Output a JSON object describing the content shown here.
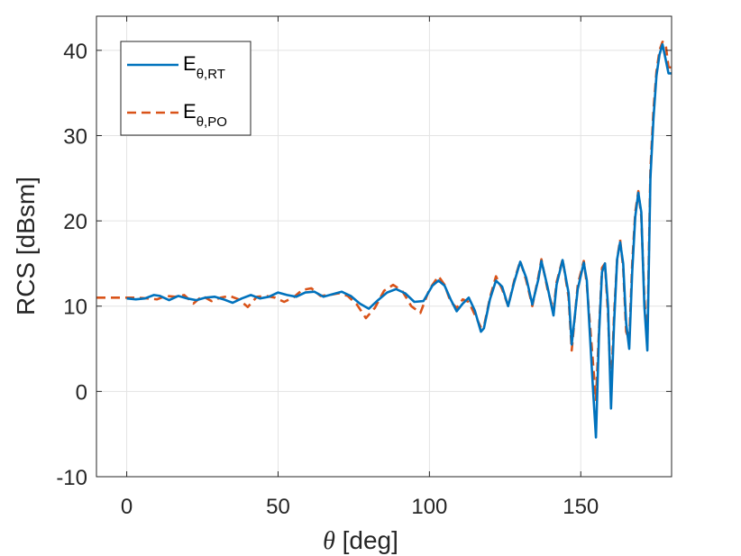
{
  "chart_data": {
    "type": "line",
    "xlabel_symbol": "θ",
    "xlabel_unit": " [deg]",
    "ylabel": "RCS [dBsm]",
    "xlim": [
      -10,
      180
    ],
    "ylim": [
      -10,
      44
    ],
    "xticks": [
      0,
      50,
      100,
      150
    ],
    "yticks": [
      -10,
      0,
      10,
      20,
      30,
      40
    ],
    "grid": true,
    "legend_position": "top-left",
    "series": [
      {
        "name": "E_θ,RT",
        "legend_main": "E",
        "legend_sub": "θ,RT",
        "color": "#0072BD",
        "style": "solid",
        "x": [
          0,
          3,
          6,
          9,
          11,
          14,
          17,
          20,
          23,
          26,
          29,
          32,
          35,
          38,
          41,
          44,
          47,
          50,
          53,
          56,
          59,
          62,
          65,
          68,
          71,
          74,
          77,
          80,
          83,
          86,
          89,
          92,
          95,
          98,
          101,
          103,
          105,
          107,
          109,
          111,
          113,
          115,
          117,
          118,
          120,
          122,
          124,
          126,
          128,
          130,
          132,
          134,
          136,
          137,
          139,
          141,
          142,
          144,
          146,
          147,
          149,
          151,
          152,
          154,
          155,
          156,
          157,
          158,
          159,
          160,
          161,
          162,
          163,
          164,
          165,
          166,
          167,
          168,
          169,
          170,
          171,
          172,
          173,
          174,
          175,
          176,
          177,
          178,
          179,
          180
        ],
        "y": [
          10.9,
          10.8,
          10.9,
          11.3,
          11.2,
          10.7,
          11.2,
          10.9,
          10.7,
          11.0,
          11.1,
          10.8,
          10.4,
          10.9,
          11.3,
          10.9,
          11.1,
          11.6,
          11.3,
          11.1,
          11.6,
          11.7,
          11.1,
          11.4,
          11.7,
          11.2,
          10.3,
          9.7,
          10.7,
          11.6,
          12.0,
          11.5,
          10.5,
          10.6,
          12.4,
          13.0,
          12.4,
          10.8,
          9.4,
          10.3,
          11.0,
          9.5,
          7.0,
          7.4,
          10.8,
          13.0,
          12.3,
          10.0,
          12.8,
          15.2,
          13.3,
          10.2,
          13.2,
          15.3,
          12.3,
          8.9,
          12.5,
          15.4,
          11.5,
          5.5,
          12.0,
          15.1,
          13.0,
          0.5,
          -5.4,
          6.5,
          14.0,
          15.0,
          10.0,
          -2.0,
          8.0,
          15.5,
          17.5,
          15.0,
          8.0,
          5.0,
          14.0,
          20.5,
          23.3,
          21.0,
          10.0,
          4.8,
          25.0,
          32.0,
          37.0,
          39.5,
          40.7,
          39.0,
          37.3,
          37.3
        ]
      },
      {
        "name": "E_θ,PO",
        "legend_main": "E",
        "legend_sub": "θ,PO",
        "color": "#D95319",
        "style": "dashed",
        "x": [
          -10,
          -5,
          0,
          3,
          7,
          10,
          13,
          16,
          19,
          22,
          25,
          28,
          31,
          34,
          37,
          40,
          43,
          46,
          49,
          52,
          55,
          58,
          61,
          64,
          67,
          70,
          73,
          76,
          79,
          82,
          85,
          88,
          91,
          94,
          97,
          100,
          103,
          105,
          107,
          109,
          111,
          113,
          115,
          117,
          118,
          120,
          122,
          124,
          126,
          128,
          130,
          132,
          134,
          136,
          137,
          139,
          141,
          142,
          144,
          146,
          147,
          149,
          151,
          152,
          154,
          155,
          156,
          157,
          158,
          159,
          160,
          161,
          162,
          163,
          164,
          165,
          166,
          167,
          168,
          169,
          170,
          171,
          172,
          173,
          174,
          175,
          176,
          177,
          178,
          179,
          180
        ],
        "y": [
          11.0,
          11.0,
          11.0,
          11.0,
          10.9,
          10.8,
          11.2,
          11.1,
          11.3,
          10.3,
          11.2,
          10.6,
          11.0,
          11.2,
          10.8,
          9.9,
          11.1,
          11.2,
          11.0,
          10.5,
          11.0,
          11.9,
          12.1,
          11.2,
          11.3,
          11.5,
          11.2,
          10.2,
          8.6,
          9.8,
          11.8,
          12.5,
          11.8,
          10.0,
          9.2,
          12.0,
          13.5,
          12.5,
          10.5,
          9.8,
          10.8,
          10.5,
          9.0,
          7.5,
          7.6,
          11.0,
          13.5,
          12.0,
          10.0,
          13.0,
          15.3,
          13.0,
          10.0,
          13.5,
          15.5,
          12.0,
          9.5,
          12.8,
          15.5,
          11.0,
          4.8,
          12.5,
          15.3,
          12.5,
          3.5,
          -1.0,
          7.0,
          14.5,
          15.0,
          9.0,
          0.0,
          9.0,
          15.5,
          17.8,
          14.5,
          7.0,
          6.0,
          15.0,
          21.0,
          23.5,
          20.5,
          11.0,
          6.0,
          26.0,
          33.0,
          37.5,
          40.0,
          41.0,
          40.8,
          38.0,
          38.0
        ]
      }
    ]
  }
}
